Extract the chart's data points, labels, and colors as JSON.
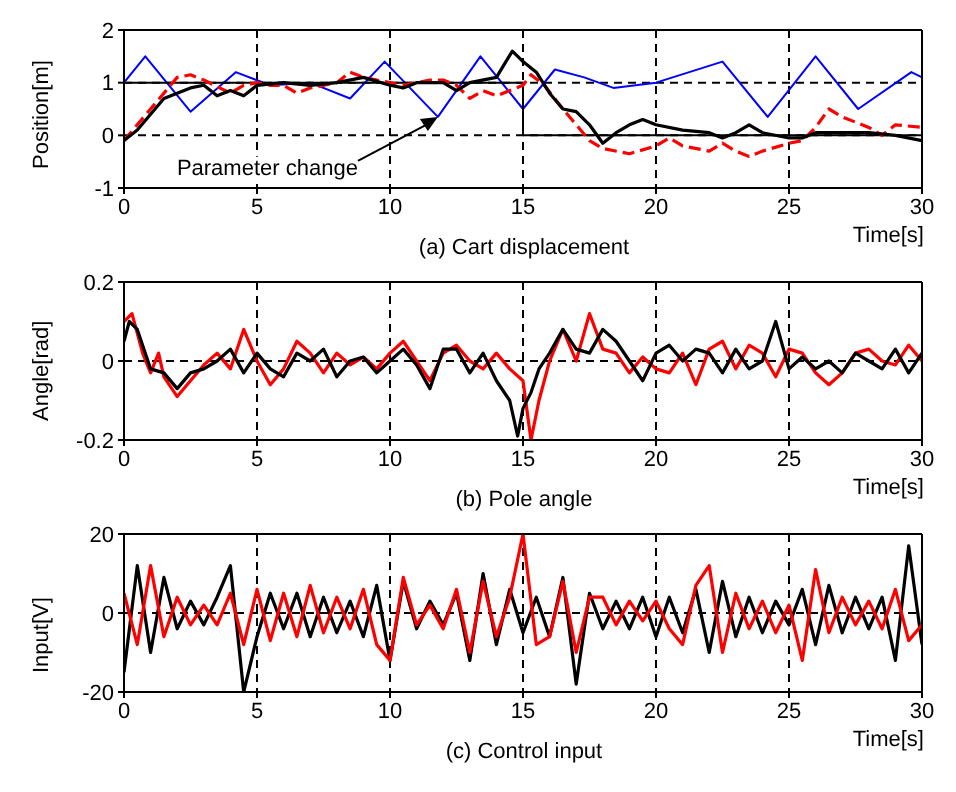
{
  "chart_data": [
    {
      "type": "line",
      "title": "(a) Cart displacement",
      "xlabel": "Time[s]",
      "ylabel": "Position[m]",
      "xlim": [
        0,
        30
      ],
      "xticks": [
        0,
        5,
        10,
        15,
        20,
        25,
        30
      ],
      "ylim": [
        -1,
        2
      ],
      "yticks": [
        -1,
        0,
        1,
        2
      ],
      "grid": true,
      "line_style": "solid",
      "annotations": [
        {
          "text": "Parameter change",
          "x": 11.8,
          "y": 0.35
        }
      ],
      "series": [
        {
          "color": "#0000ff",
          "x": [
            0,
            0.8,
            2.5,
            4.2,
            5.5,
            7,
            8.5,
            9.8,
            11.8,
            13.4,
            15,
            16.2,
            17.3,
            18.4,
            20,
            22.5,
            24.2,
            26,
            27.6,
            29.6,
            30
          ],
          "values": [
            1,
            1.5,
            0.45,
            1.2,
            0.95,
            1.0,
            0.7,
            1.4,
            0.35,
            1.5,
            0.5,
            1.25,
            1.1,
            0.9,
            1.0,
            1.4,
            0.35,
            1.5,
            0.5,
            1.2,
            1.1
          ]
        },
        {
          "color": "#000000",
          "x": [
            0,
            15,
            15,
            30
          ],
          "values": [
            1,
            1,
            0,
            0
          ]
        },
        {
          "color": "#ff0000",
          "line_style": "dashed",
          "x": [
            0,
            1,
            2,
            2.5,
            3,
            4,
            4.5,
            5,
            5.5,
            6,
            6.5,
            7,
            8,
            8.5,
            9,
            9.5,
            10,
            10.5,
            11,
            11.5,
            12,
            12.5,
            13,
            13.5,
            14,
            14.5,
            15,
            15.3,
            15.8,
            16.5,
            17,
            17.5,
            18,
            19,
            20,
            20.5,
            21,
            22,
            22.5,
            23,
            23.5,
            24,
            25,
            25.5,
            26,
            26.5,
            27,
            28,
            28.5,
            29,
            30
          ],
          "values": [
            -0.1,
            0.5,
            1.1,
            1.15,
            1.05,
            0.8,
            0.95,
            1.0,
            0.95,
            0.95,
            0.8,
            0.9,
            1.0,
            1.2,
            1.1,
            1.05,
            1.0,
            0.95,
            1.0,
            1.05,
            1.05,
            0.95,
            0.7,
            0.85,
            0.75,
            0.85,
            0.95,
            1.15,
            0.95,
            0.5,
            0.2,
            -0.1,
            -0.25,
            -0.35,
            -0.2,
            -0.05,
            -0.2,
            -0.3,
            -0.15,
            -0.3,
            -0.4,
            -0.3,
            -0.15,
            -0.1,
            0.15,
            0.5,
            0.35,
            0.15,
            0.0,
            0.2,
            0.15
          ]
        },
        {
          "color": "#000000",
          "x": [
            0,
            0.5,
            1,
            1.5,
            2,
            2.5,
            3,
            3.5,
            4,
            4.5,
            5,
            6,
            7,
            8,
            9,
            10,
            10.5,
            11,
            12,
            12.5,
            13,
            14,
            14.6,
            15,
            15.5,
            16,
            16.5,
            17,
            17.5,
            18,
            18.5,
            19,
            19.5,
            20,
            21,
            22,
            22.5,
            23,
            23.5,
            24,
            25,
            25.5,
            26,
            27,
            28,
            29,
            30
          ],
          "values": [
            -0.1,
            0.1,
            0.4,
            0.7,
            0.8,
            0.9,
            0.95,
            0.75,
            0.85,
            0.75,
            0.95,
            1.0,
            0.95,
            1.0,
            1.1,
            0.95,
            0.9,
            1.0,
            1.0,
            0.85,
            1.0,
            1.1,
            1.6,
            1.4,
            1.2,
            0.8,
            0.5,
            0.45,
            0.2,
            -0.15,
            0.05,
            0.2,
            0.3,
            0.2,
            0.1,
            0.05,
            -0.05,
            0.05,
            0.2,
            0.05,
            -0.05,
            -0.05,
            0.05,
            0.05,
            0.05,
            0.0,
            -0.1
          ]
        }
      ]
    },
    {
      "type": "line",
      "title": "(b) Pole angle",
      "xlabel": "Time[s]",
      "ylabel": "Angle[rad]",
      "xlim": [
        0,
        30
      ],
      "xticks": [
        0,
        5,
        10,
        15,
        20,
        25,
        30
      ],
      "ylim": [
        -0.2,
        0.2
      ],
      "yticks": [
        -0.2,
        0,
        0.2
      ],
      "grid": true,
      "line_style": "solid",
      "series": [
        {
          "color": "#ff0000",
          "x": [
            0,
            0.3,
            0.7,
            1,
            1.3,
            1.5,
            2,
            2.5,
            3,
            3.5,
            4,
            4.5,
            5,
            5.5,
            6,
            6.5,
            7,
            7.5,
            8,
            8.5,
            9,
            9.5,
            10,
            10.5,
            11,
            11.5,
            12,
            12.5,
            13,
            13.5,
            14,
            14.5,
            15,
            15.3,
            15.6,
            16,
            16.5,
            17,
            17.5,
            18,
            18.5,
            19,
            19.5,
            20,
            20.5,
            21,
            21.5,
            22,
            22.5,
            23,
            23.5,
            24,
            24.5,
            25,
            25.5,
            26,
            26.5,
            27,
            27.5,
            28,
            28.5,
            29,
            29.5,
            30
          ],
          "values": [
            0.1,
            0.12,
            0.02,
            -0.03,
            0.02,
            -0.04,
            -0.09,
            -0.05,
            -0.01,
            0.02,
            -0.02,
            0.08,
            0.0,
            -0.06,
            -0.02,
            0.05,
            0.02,
            -0.03,
            0.02,
            -0.01,
            0.01,
            -0.02,
            0.02,
            0.05,
            0.0,
            -0.05,
            0.02,
            0.04,
            0.0,
            -0.02,
            0.02,
            -0.02,
            -0.05,
            -0.2,
            -0.1,
            0.0,
            0.08,
            0.0,
            0.12,
            0.03,
            0.02,
            -0.03,
            0.01,
            -0.02,
            -0.03,
            0.02,
            -0.06,
            0.03,
            0.05,
            -0.02,
            0.04,
            0.02,
            -0.04,
            0.03,
            0.02,
            -0.03,
            -0.06,
            -0.03,
            0.02,
            0.03,
            0.0,
            -0.01,
            0.04,
            0.0
          ]
        },
        {
          "color": "#000000",
          "x": [
            0,
            0.2,
            0.5,
            1,
            1.5,
            2,
            2.5,
            3,
            3.5,
            4,
            4.5,
            5,
            5.5,
            6,
            6.5,
            7,
            7.5,
            8,
            8.5,
            9,
            9.5,
            10,
            10.5,
            11,
            11.5,
            12,
            12.5,
            13,
            13.5,
            14,
            14.5,
            14.8,
            15,
            15.3,
            15.6,
            16,
            16.5,
            17,
            17.5,
            18,
            18.5,
            19,
            19.5,
            20,
            20.5,
            21,
            21.5,
            22,
            22.5,
            23,
            23.5,
            24,
            24.5,
            25,
            25.5,
            26,
            26.5,
            27,
            27.5,
            28,
            28.5,
            29,
            29.5,
            30
          ],
          "values": [
            0.05,
            0.1,
            0.08,
            -0.02,
            -0.03,
            -0.07,
            -0.03,
            -0.02,
            0.0,
            0.03,
            -0.03,
            0.02,
            -0.02,
            -0.04,
            0.02,
            0.0,
            0.03,
            -0.04,
            0.0,
            0.01,
            -0.03,
            0.0,
            0.03,
            -0.01,
            -0.07,
            0.03,
            0.03,
            -0.03,
            0.02,
            -0.05,
            -0.1,
            -0.19,
            -0.12,
            -0.08,
            -0.02,
            0.02,
            0.08,
            0.03,
            0.02,
            0.08,
            0.05,
            0.0,
            -0.05,
            0.02,
            0.04,
            0.0,
            0.03,
            0.02,
            -0.03,
            0.03,
            -0.02,
            0.0,
            0.1,
            -0.02,
            0.01,
            -0.02,
            0.0,
            -0.03,
            0.02,
            0.0,
            -0.02,
            0.03,
            -0.03,
            0.02
          ]
        }
      ]
    },
    {
      "type": "line",
      "title": "(c) Control input",
      "xlabel": "Time[s]",
      "ylabel": "Input[V]",
      "xlim": [
        0,
        30
      ],
      "xticks": [
        0,
        5,
        10,
        15,
        20,
        25,
        30
      ],
      "ylim": [
        -20,
        20
      ],
      "yticks": [
        -20,
        0,
        20
      ],
      "grid": true,
      "line_style": "solid",
      "x": [
        0,
        0.5,
        1,
        1.5,
        2,
        2.5,
        3,
        3.5,
        4,
        4.5,
        5,
        5.5,
        6,
        6.5,
        7,
        7.5,
        8,
        8.5,
        9,
        9.5,
        10,
        10.5,
        11,
        11.5,
        12,
        12.5,
        13,
        13.5,
        14,
        14.5,
        15,
        15.5,
        16,
        16.5,
        17,
        17.5,
        18,
        18.5,
        19,
        19.5,
        20,
        20.5,
        21,
        21.5,
        22,
        22.5,
        23,
        23.5,
        24,
        24.5,
        25,
        25.5,
        26,
        26.5,
        27,
        27.5,
        28,
        28.5,
        29,
        29.5,
        30
      ],
      "series": [
        {
          "color": "#000000",
          "values": [
            -15,
            12,
            -10,
            9,
            -4,
            3,
            -3,
            4,
            12,
            -20,
            -6,
            5,
            -4,
            5,
            -6,
            4,
            -5,
            3,
            -6,
            7,
            -12,
            8,
            -4,
            3,
            -3,
            5,
            -12,
            10,
            -8,
            6,
            -5,
            4,
            -6,
            9,
            -18,
            5,
            -4,
            3,
            -4,
            4,
            -6,
            4,
            -5,
            6,
            -10,
            8,
            -6,
            4,
            -5,
            3,
            -3,
            6,
            -8,
            7,
            -5,
            4,
            -4,
            4,
            -12,
            17,
            -8
          ]
        },
        {
          "color": "#ff0000",
          "values": [
            5,
            -8,
            12,
            -6,
            4,
            -3,
            2,
            -3,
            5,
            -8,
            6,
            -7,
            5,
            -6,
            7,
            -5,
            4,
            -4,
            6,
            -8,
            -12,
            9,
            -3,
            2,
            -4,
            6,
            -10,
            8,
            -6,
            4,
            20,
            -8,
            -6,
            8,
            -10,
            4,
            4,
            -3,
            3,
            -2,
            3,
            -4,
            -8,
            7,
            12,
            -10,
            5,
            -4,
            3,
            -5,
            2,
            -12,
            11,
            -5,
            4,
            -3,
            3,
            -4,
            6,
            -7,
            -3
          ]
        }
      ]
    }
  ]
}
